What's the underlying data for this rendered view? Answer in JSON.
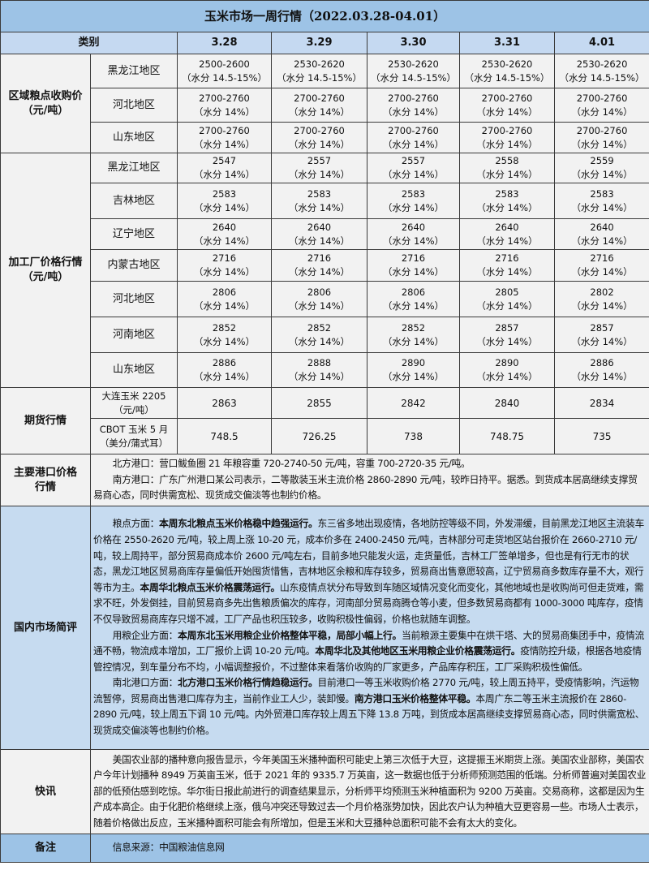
{
  "title": "玉米市场一周行情（2022.03.28-04.01）",
  "header": {
    "category": "类别",
    "dates": [
      "3.28",
      "3.29",
      "3.30",
      "3.31",
      "4.01"
    ]
  },
  "regional": {
    "label": [
      "区域粮点收购价",
      "（元/吨）"
    ],
    "rows": [
      {
        "region": "黑龙江地区",
        "values": [
          "2500-2600",
          "2530-2620",
          "2530-2620",
          "2530-2620",
          "2530-2620"
        ],
        "moisture": "（水分 14.5-15%）"
      },
      {
        "region": "河北地区",
        "values": [
          "2700-2760",
          "2700-2760",
          "2700-2760",
          "2700-2760",
          "2700-2760"
        ],
        "moisture": "（水分 14%）"
      },
      {
        "region": "山东地区",
        "values": [
          "2700-2760",
          "2700-2760",
          "2700-2760",
          "2700-2760",
          "2700-2760"
        ],
        "moisture": "（水分 14%）"
      }
    ]
  },
  "factory": {
    "label": [
      "加工厂价格行情",
      "（元/吨）"
    ],
    "rows": [
      {
        "region": "黑龙江地区",
        "values": [
          "2547",
          "2557",
          "2557",
          "2558",
          "2559"
        ],
        "moisture": "（水分 14%）"
      },
      {
        "region": "吉林地区",
        "values": [
          "2583",
          "2583",
          "2583",
          "2583",
          "2583"
        ],
        "moisture": "（水分 14%）"
      },
      {
        "region": "辽宁地区",
        "values": [
          "2640",
          "2640",
          "2640",
          "2640",
          "2640"
        ],
        "moisture": "（水分 14%）"
      },
      {
        "region": "内蒙古地区",
        "values": [
          "2716",
          "2716",
          "2716",
          "2716",
          "2716"
        ],
        "moisture": "（水分 14%）"
      },
      {
        "region": "河北地区",
        "values": [
          "2806",
          "2806",
          "2806",
          "2805",
          "2802"
        ],
        "moisture": "（水分 14%）"
      },
      {
        "region": "河南地区",
        "values": [
          "2852",
          "2852",
          "2852",
          "2857",
          "2857"
        ],
        "moisture": "（水分 14%）"
      },
      {
        "region": "山东地区",
        "values": [
          "2886",
          "2888",
          "2890",
          "2890",
          "2886"
        ],
        "moisture": "（水分 14%）"
      }
    ]
  },
  "futures": {
    "label": "期货行情",
    "rows": [
      {
        "name": [
          "大连玉米 2205",
          "（元/吨）"
        ],
        "values": [
          "2863",
          "2855",
          "2842",
          "2840",
          "2834"
        ]
      },
      {
        "name": [
          "CBOT 玉米 5 月",
          "（美分/蒲式耳）"
        ],
        "values": [
          "748.5",
          "726.25",
          "738",
          "748.75",
          "735"
        ]
      }
    ]
  },
  "ports": {
    "label": [
      "主要港口价格",
      "行情"
    ],
    "paragraphs": [
      [
        {
          "text": "北方港口：营口鲅鱼圈 21 年粮容重 720-2740-50 元/吨，容重 700-2720-35 元/吨。",
          "bold": false
        }
      ],
      [
        {
          "text": "南方港口：广东广州港口某公司表示，二等散装玉米主流价格 2860-2890 元/吨，较昨日持平。据悉。到货成本居高继续支撑贸易商心态，同时供需宽松、现货成交偏淡等也制约价格。",
          "bold": false
        }
      ]
    ]
  },
  "domestic": {
    "label": "国内市场简评",
    "paragraphs": [
      [
        {
          "text": "粮点方面：",
          "bold": false
        },
        {
          "text": "本周东北粮点玉米价格稳中趋强运行。",
          "bold": true
        },
        {
          "text": "东三省多地出现疫情，各地防控等级不同，外发滞缓，目前黑龙江地区主流装车价格在 2550-2620 元/吨，较上周上涨 10-20 元，成本价多在 2400-2450 元/吨，吉林部分可走货地区站台报价在 2660-2710 元/吨，较上周持平，部分贸易商成本价 2600 元/吨左右，目前多地只能发火运，走货量低，吉林工厂签单增多，但也是有行无市的状态，黑龙江地区贸易商库存量偏低开始囤货惜售，吉林地区余粮和库存较多，贸易商出售意愿较高，辽宁贸易商多数库存量不大，观行等市为主。",
          "bold": false
        },
        {
          "text": "本周华北粮点玉米价格震荡运行。",
          "bold": true
        },
        {
          "text": "山东疫情点状分布导致到车随区域情况变化而变化，其他地域也是收购尚可但走货难，需求不旺，外发倒挂，目前贸易商多先出售粮质偏次的库存，河南部分贸易商腾仓等小麦，但多数贸易商都有 1000-3000 吨库存，疫情不仅导致贸易商库存只增不减，工厂产品也积压较多，收购积极性偏弱，价格也就随车调整。",
          "bold": false
        }
      ],
      [
        {
          "text": "用粮企业方面：",
          "bold": false
        },
        {
          "text": "本周东北玉米用粮企业价格整体平稳，局部小幅上行。",
          "bold": true
        },
        {
          "text": "当前粮源主要集中在烘干塔、大的贸易商集团手中，疫情流通不畅，物流成本增加，工厂报价上调 10-20 元/吨。",
          "bold": false
        },
        {
          "text": "本周华北及其他地区玉米用粮企业价格震荡运行。",
          "bold": true
        },
        {
          "text": "疫情防控升级，根据各地疫情管控情况，到车量分布不均，小幅调整报价，不过整体来看落价收购的厂家更多，产品库存积压，工厂采购积极性偏低。",
          "bold": false
        }
      ],
      [
        {
          "text": "南北港口方面：",
          "bold": false
        },
        {
          "text": "北方港口玉米价格行情趋稳运行。",
          "bold": true
        },
        {
          "text": "目前港口一等玉米收购价格 2770 元/吨，较上周五持平，受疫情影响，汽运物流暂停，贸易商出售港口库存为主，当前作业工人少，装卸慢。",
          "bold": false
        },
        {
          "text": "南方港口玉米价格整体平稳。",
          "bold": true
        },
        {
          "text": "本周广东二等玉米主流报价在 2860-2890 元/吨，较上周五下调 10 元/吨。内外贸港口库存较上周五下降 13.8 万吨，到货成本居高继续支撑贸易商心态，同时供需宽松、现货成交偏淡等也制约价格。",
          "bold": false
        }
      ]
    ]
  },
  "news": {
    "label": "快讯",
    "paragraphs": [
      [
        {
          "text": "美国农业部的播种意向报告显示，今年美国玉米播种面积可能史上第三次低于大豆，这提振玉米期货上涨。美国农业部称，美国农户今年计划播种 8949 万英亩玉米，低于 2021 年的 9335.7 万英亩，这一数据也低于分析师预测范围的低端。分析师普遍对美国农业部的低预估感到吃惊。华尔街日报此前进行的调查结果显示，分析师平均预测玉米种植面积为 9200 万英亩。交易商称，这都是因为生产成本高企。由于化肥价格继续上涨，俄乌冲突还导致过去一个月价格涨势加快，因此农户认为种植大豆更容易一些。市场人士表示，随着价格做出反应，玉米播种面积可能会有所增加，但是玉米和大豆播种总面积可能不会有太大的变化。",
          "bold": false
        }
      ]
    ]
  },
  "note": {
    "label": "备注",
    "text": "信息来源：中国粮油信息网"
  },
  "colors": {
    "title_bg": "#9dc3e6",
    "header_bg": "#c5d9f1",
    "body_bg": "#f2f2f2",
    "domestic_bg": "#c6dbf0",
    "border": "#3a3a3a"
  }
}
